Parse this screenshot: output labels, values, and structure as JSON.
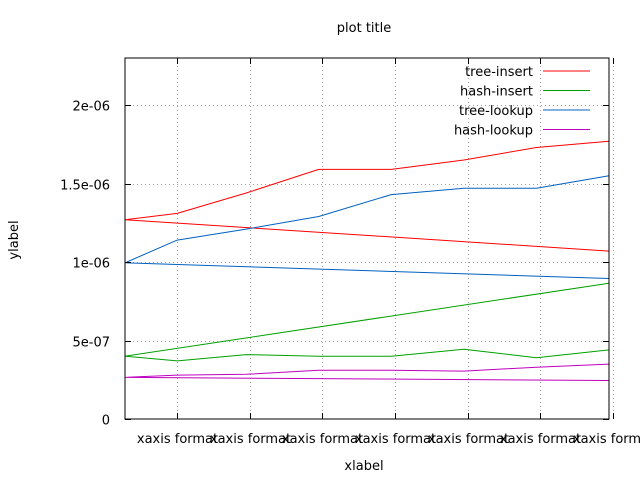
{
  "chart_data": {
    "type": "line",
    "title": "plot title",
    "xlabel": "xlabel",
    "ylabel": "ylabel",
    "x": [
      0,
      1,
      2,
      3,
      4,
      5,
      6
    ],
    "x_tick_labels": [
      "xaxis format",
      "xaxis format",
      "xaxis format",
      "xaxis format",
      "xaxis format",
      "xaxis format",
      "xaxis format"
    ],
    "xlim": [
      -0.72,
      5.95
    ],
    "ylim": [
      0,
      2.3e-06
    ],
    "y_ticks": [
      {
        "value": 0,
        "label": "0"
      },
      {
        "value": 5e-07,
        "label": "5e-07"
      },
      {
        "value": 1e-06,
        "label": "1e-06"
      },
      {
        "value": 1.5e-06,
        "label": "1.5e-06"
      },
      {
        "value": 2e-06,
        "label": "2e-06"
      }
    ],
    "grid": true,
    "legend_position": "top-right",
    "series": [
      {
        "name": "tree-insert",
        "color": "#ff0000",
        "points": [
          [
            -0.72,
            1.27e-06
          ],
          [
            0,
            1.31e-06
          ],
          [
            0.95,
            1.44e-06
          ],
          [
            1.95,
            1.59e-06
          ],
          [
            2.95,
            1.59e-06
          ],
          [
            3.95,
            1.65e-06
          ],
          [
            4.95,
            1.73e-06
          ],
          [
            5.95,
            1.77e-06
          ],
          [
            5.95,
            1.07e-06
          ],
          [
            -0.72,
            1.27e-06
          ]
        ]
      },
      {
        "name": "hash-insert",
        "color": "#00a000",
        "points": [
          [
            -0.72,
            4e-07
          ],
          [
            0,
            3.7e-07
          ],
          [
            0.95,
            4.1e-07
          ],
          [
            1.95,
            4e-07
          ],
          [
            2.95,
            4e-07
          ],
          [
            3.95,
            4.45e-07
          ],
          [
            4.95,
            3.9e-07
          ],
          [
            5.95,
            4.4e-07
          ],
          [
            5.95,
            4.1e-07
          ],
          [
            5.95,
            8.65e-07
          ],
          [
            -0.72,
            4e-07
          ]
        ]
      },
      {
        "name": "tree-lookup",
        "color": "#0060c0",
        "points": [
          [
            -0.72,
            9.95e-07
          ],
          [
            0,
            1.14e-06
          ],
          [
            0.95,
            1.21e-06
          ],
          [
            1.95,
            1.29e-06
          ],
          [
            2.95,
            1.43e-06
          ],
          [
            3.95,
            1.47e-06
          ],
          [
            4.95,
            1.47e-06
          ],
          [
            5.95,
            1.55e-06
          ],
          [
            5.95,
            8.95e-07
          ],
          [
            -0.72,
            9.95e-07
          ]
        ]
      },
      {
        "name": "hash-lookup",
        "color": "#c000c0",
        "points": [
          [
            -0.72,
            2.65e-07
          ],
          [
            0,
            2.8e-07
          ],
          [
            0.95,
            2.85e-07
          ],
          [
            1.95,
            3.1e-07
          ],
          [
            2.95,
            3.1e-07
          ],
          [
            3.95,
            3.05e-07
          ],
          [
            4.95,
            3.3e-07
          ],
          [
            5.95,
            3.5e-07
          ],
          [
            5.95,
            2.45e-07
          ],
          [
            -0.72,
            2.65e-07
          ]
        ]
      }
    ]
  }
}
